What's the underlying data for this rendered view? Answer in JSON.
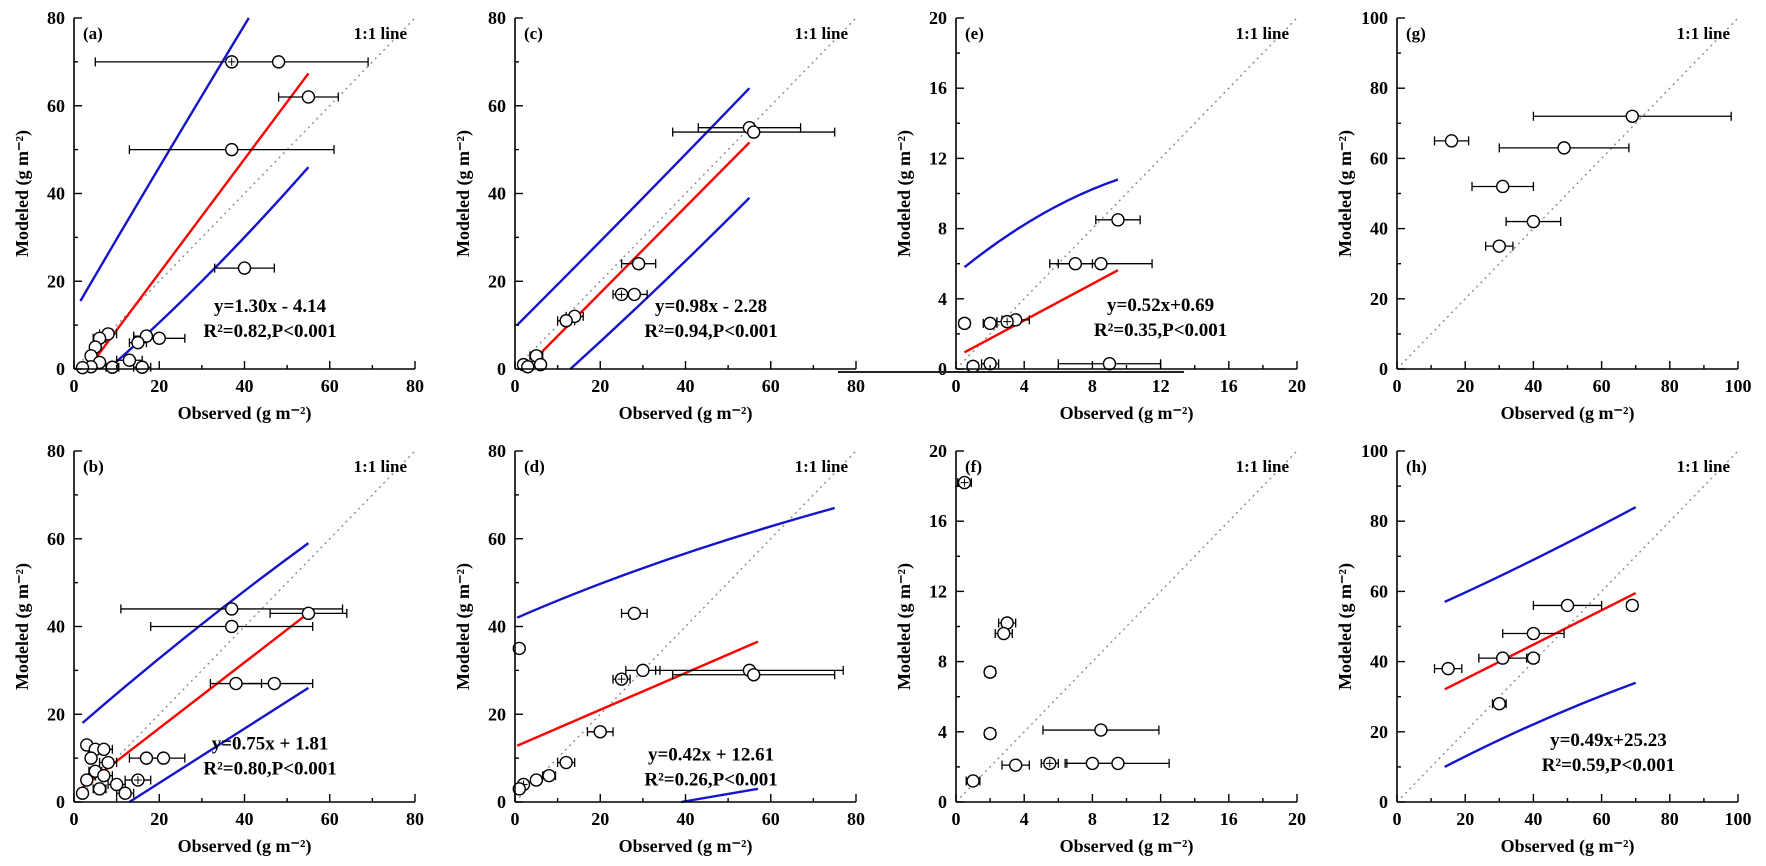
{
  "figure": {
    "xlabel": "Observed (g m⁻²)",
    "ylabel": "Modeled (g m⁻²)",
    "one_to_one_label": "1:1 line",
    "colors": {
      "regression": "#ff0000",
      "confidence_band": "#1414cd",
      "one_to_one_line": "#8c8c8c",
      "points": "#000000",
      "background": "#ffffff"
    }
  },
  "chart_data": [
    {
      "type": "scatter",
      "panel": "(a)",
      "xlabel": "Observed (g m⁻²)",
      "ylabel": "Modeled (g m⁻²)",
      "one_to_one_label": "1:1 line",
      "xlim": [
        0,
        80
      ],
      "ylim": [
        0,
        80
      ],
      "xticks": [
        0,
        20,
        40,
        60,
        80
      ],
      "yticks": [
        0,
        20,
        40,
        60,
        80
      ],
      "grid": false,
      "regression": {
        "slope": 1.3,
        "intercept": -4.14,
        "x_range": [
          4.5,
          55
        ]
      },
      "bands": {
        "upper": [
          [
            1.5,
            15.5
          ],
          [
            20,
            46
          ],
          [
            41,
            80
          ]
        ],
        "lower": [
          [
            8,
            0
          ],
          [
            31,
            21
          ],
          [
            55,
            46
          ]
        ]
      },
      "annotation": {
        "equation": "y=1.30x - 4.14",
        "stats": "R²=0.82,P<0.001",
        "x": 46,
        "y": 13
      },
      "points": [
        [
          37,
          70,
          32,
          1
        ],
        [
          48,
          70,
          0,
          0
        ],
        [
          55,
          62,
          7,
          0
        ],
        [
          37,
          50,
          24,
          0
        ],
        [
          40,
          23,
          7,
          0
        ],
        [
          20,
          7,
          6,
          0
        ],
        [
          17,
          7.5,
          3,
          0
        ],
        [
          15,
          6,
          2,
          0
        ],
        [
          8,
          8,
          2,
          0
        ],
        [
          6,
          7,
          1.5,
          0
        ],
        [
          5,
          5,
          1,
          0
        ],
        [
          4,
          3,
          1,
          0
        ],
        [
          13,
          2,
          3,
          0
        ],
        [
          6,
          1.5,
          1,
          0
        ],
        [
          4,
          0.5,
          0.8,
          0
        ],
        [
          9,
          0.4,
          1.5,
          0
        ],
        [
          16,
          0.4,
          2,
          0
        ],
        [
          2,
          0.3,
          0.5,
          0
        ]
      ]
    },
    {
      "type": "scatter",
      "panel": "(c)",
      "xlabel": "Observed (g m⁻²)",
      "ylabel": "Modeled (g m⁻²)",
      "one_to_one_label": "1:1 line",
      "xlim": [
        0,
        80
      ],
      "ylim": [
        0,
        80
      ],
      "xticks": [
        0,
        20,
        40,
        60,
        80
      ],
      "yticks": [
        0,
        20,
        40,
        60,
        80
      ],
      "grid": false,
      "regression": {
        "slope": 0.98,
        "intercept": -2.28,
        "x_range": [
          3,
          55
        ]
      },
      "bands": {
        "upper": [
          [
            0.5,
            10
          ],
          [
            27,
            36
          ],
          [
            55,
            64
          ]
        ],
        "lower": [
          [
            13,
            0
          ],
          [
            34,
            19
          ],
          [
            55,
            39
          ]
        ]
      },
      "annotation": {
        "equation": "y=0.98x - 2.28",
        "stats": "R²=0.94,P<0.001",
        "x": 46,
        "y": 13
      },
      "points": [
        [
          55,
          55,
          12,
          0
        ],
        [
          56,
          54,
          19,
          0
        ],
        [
          29,
          24,
          4,
          0
        ],
        [
          25,
          17,
          2,
          1
        ],
        [
          28,
          17,
          3,
          0
        ],
        [
          14,
          12,
          2,
          0
        ],
        [
          12,
          11,
          2,
          0
        ],
        [
          5,
          3,
          1.5,
          0
        ],
        [
          2,
          1,
          0.5,
          0
        ],
        [
          6,
          1,
          1,
          0
        ],
        [
          3,
          0.5,
          0.8,
          0
        ]
      ]
    },
    {
      "type": "scatter",
      "panel": "(e)",
      "xlabel": "Observed (g m⁻²)",
      "ylabel": "Modeled (g m⁻²)",
      "one_to_one_label": "1:1 line",
      "xlim": [
        0,
        20
      ],
      "ylim": [
        0,
        20
      ],
      "xticks": [
        0,
        4,
        8,
        12,
        16,
        20
      ],
      "yticks": [
        0,
        4,
        8,
        12,
        16,
        20
      ],
      "grid": false,
      "regression": {
        "slope": 0.52,
        "intercept": 0.69,
        "x_range": [
          0.5,
          9.5
        ]
      },
      "bands": {
        "upper": [
          [
            0.5,
            5.8
          ],
          [
            5,
            8.8
          ],
          [
            9.5,
            10.8
          ]
        ]
      },
      "annotation": {
        "equation": "y=0.52x+0.69",
        "stats": "R²=0.35,P<0.001",
        "x": 12,
        "y": 3.3
      },
      "points": [
        [
          9.5,
          8.5,
          1.3,
          0
        ],
        [
          7,
          6,
          1,
          0
        ],
        [
          8.5,
          6,
          3,
          0
        ],
        [
          3.5,
          2.8,
          0.8,
          0
        ],
        [
          3,
          2.7,
          0.6,
          1
        ],
        [
          2,
          2.6,
          0.4,
          0
        ],
        [
          0.5,
          2.6,
          0.3,
          0
        ],
        [
          9,
          0.3,
          3,
          0
        ],
        [
          2,
          0.3,
          0.5,
          0
        ],
        [
          1,
          0.15,
          0.3,
          0
        ]
      ]
    },
    {
      "type": "scatter",
      "panel": "(g)",
      "xlabel": "Observed (g m⁻²)",
      "ylabel": "Modeled (g m⁻²)",
      "one_to_one_label": "1:1 line",
      "xlim": [
        0,
        100
      ],
      "ylim": [
        0,
        100
      ],
      "xticks": [
        0,
        20,
        40,
        60,
        80,
        100
      ],
      "yticks": [
        0,
        20,
        40,
        60,
        80,
        100
      ],
      "grid": false,
      "points": [
        [
          69,
          72,
          29,
          0
        ],
        [
          16,
          65,
          5,
          0
        ],
        [
          49,
          63,
          19,
          0
        ],
        [
          31,
          52,
          9,
          0
        ],
        [
          40,
          42,
          8,
          0
        ],
        [
          30,
          35,
          4,
          0
        ]
      ]
    },
    {
      "type": "scatter",
      "panel": "(b)",
      "xlabel": "Observed (g m⁻²)",
      "ylabel": "Modeled (g m⁻²)",
      "one_to_one_label": "1:1 line",
      "xlim": [
        0,
        80
      ],
      "ylim": [
        0,
        80
      ],
      "xticks": [
        0,
        20,
        40,
        60,
        80
      ],
      "yticks": [
        0,
        20,
        40,
        60,
        80
      ],
      "grid": false,
      "regression": {
        "slope": 0.75,
        "intercept": 1.81,
        "x_range": [
          2,
          55
        ]
      },
      "bands": {
        "upper": [
          [
            2,
            18
          ],
          [
            28,
            39
          ],
          [
            55,
            59
          ]
        ],
        "lower": [
          [
            13,
            0
          ],
          [
            34,
            13
          ],
          [
            55,
            26
          ]
        ]
      },
      "annotation": {
        "equation": "y=0.75x + 1.81",
        "stats": "R²=0.80,P<0.001",
        "x": 46,
        "y": 12
      },
      "points": [
        [
          37,
          44,
          26,
          0
        ],
        [
          37,
          40,
          19,
          0
        ],
        [
          55,
          43,
          9,
          0
        ],
        [
          47,
          27,
          9,
          0
        ],
        [
          38,
          27,
          6,
          0
        ],
        [
          21,
          10,
          5,
          0
        ],
        [
          17,
          10,
          4,
          0
        ],
        [
          3,
          13,
          1,
          0
        ],
        [
          5,
          12,
          1.5,
          0
        ],
        [
          7,
          12,
          2,
          0
        ],
        [
          4,
          10,
          1,
          0
        ],
        [
          8,
          9,
          2,
          0
        ],
        [
          5,
          7,
          1.5,
          0
        ],
        [
          7,
          6,
          2,
          0
        ],
        [
          3,
          5,
          1,
          0
        ],
        [
          15,
          5,
          3,
          1
        ],
        [
          10,
          4,
          2,
          0
        ],
        [
          6,
          3,
          1.5,
          0
        ],
        [
          2,
          2,
          0.5,
          0
        ],
        [
          12,
          2,
          2,
          0
        ]
      ]
    },
    {
      "type": "scatter",
      "panel": "(d)",
      "xlabel": "Observed (g m⁻²)",
      "ylabel": "Modeled (g m⁻²)",
      "one_to_one_label": "1:1 line",
      "xlim": [
        0,
        80
      ],
      "ylim": [
        0,
        80
      ],
      "xticks": [
        0,
        20,
        40,
        60,
        80
      ],
      "yticks": [
        0,
        20,
        40,
        60,
        80
      ],
      "grid": false,
      "regression": {
        "slope": 0.42,
        "intercept": 12.61,
        "x_range": [
          0.5,
          57
        ]
      },
      "bands": {
        "upper": [
          [
            0.5,
            42
          ],
          [
            35,
            55
          ],
          [
            75,
            67
          ]
        ],
        "lower": [
          [
            39,
            0
          ],
          [
            48,
            1.5
          ],
          [
            57,
            3
          ]
        ]
      },
      "annotation": {
        "equation": "y=0.42x + 12.61",
        "stats": "R²=0.26,P<0.001",
        "x": 46,
        "y": 9.5
      },
      "points": [
        [
          1,
          35,
          1,
          0
        ],
        [
          28,
          43,
          3,
          0
        ],
        [
          25,
          28,
          2,
          1
        ],
        [
          30,
          30,
          4,
          0
        ],
        [
          55,
          30,
          22,
          0
        ],
        [
          56,
          29,
          19,
          0
        ],
        [
          20,
          16,
          3,
          0
        ],
        [
          12,
          9,
          2,
          0
        ],
        [
          8,
          6,
          1.5,
          0
        ],
        [
          5,
          5,
          1,
          0
        ],
        [
          2,
          4,
          0.8,
          1
        ],
        [
          1,
          3,
          0.5,
          0
        ]
      ]
    },
    {
      "type": "scatter",
      "panel": "(f)",
      "xlabel": "Observed (g m⁻²)",
      "ylabel": "Modeled (g m⁻²)",
      "one_to_one_label": "1:1 line",
      "xlim": [
        0,
        20
      ],
      "ylim": [
        0,
        20
      ],
      "xticks": [
        0,
        4,
        8,
        12,
        16,
        20
      ],
      "yticks": [
        0,
        4,
        8,
        12,
        16,
        20
      ],
      "grid": false,
      "points": [
        [
          0.5,
          18.2,
          0.4,
          1
        ],
        [
          3,
          10.2,
          0.5,
          0
        ],
        [
          2.8,
          9.6,
          0.5,
          0
        ],
        [
          2,
          7.4,
          0.3,
          0
        ],
        [
          2,
          3.9,
          0.3,
          0
        ],
        [
          8.5,
          4.1,
          3.4,
          0
        ],
        [
          5.5,
          2.2,
          0.5,
          1
        ],
        [
          8,
          2.2,
          1.6,
          0
        ],
        [
          9.5,
          2.2,
          3,
          0
        ],
        [
          3.5,
          2.1,
          0.8,
          0
        ],
        [
          1,
          1.2,
          0.4,
          0
        ]
      ]
    },
    {
      "type": "scatter",
      "panel": "(h)",
      "xlabel": "Observed (g m⁻²)",
      "ylabel": "Modeled (g m⁻²)",
      "one_to_one_label": "1:1 line",
      "xlim": [
        0,
        100
      ],
      "ylim": [
        0,
        100
      ],
      "xticks": [
        0,
        20,
        40,
        60,
        80,
        100
      ],
      "yticks": [
        0,
        20,
        40,
        60,
        80,
        100
      ],
      "grid": false,
      "regression": {
        "slope": 0.49,
        "intercept": 25.23,
        "x_range": [
          14,
          70
        ]
      },
      "bands": {
        "upper": [
          [
            14,
            57
          ],
          [
            40,
            69
          ],
          [
            70,
            84
          ]
        ],
        "lower": [
          [
            14,
            10
          ],
          [
            42,
            23
          ],
          [
            70,
            34
          ]
        ]
      },
      "annotation": {
        "equation": "y=0.49x+25.23",
        "stats": "R²=0.59,P<0.001",
        "x": 62,
        "y": 16
      },
      "points": [
        [
          50,
          56,
          10,
          0
        ],
        [
          69,
          56,
          1.5,
          0
        ],
        [
          40,
          48,
          9,
          0
        ],
        [
          31,
          41,
          7,
          0
        ],
        [
          40,
          41,
          1.5,
          0
        ],
        [
          15,
          38,
          4,
          0
        ],
        [
          30,
          28,
          2,
          0
        ]
      ]
    }
  ]
}
